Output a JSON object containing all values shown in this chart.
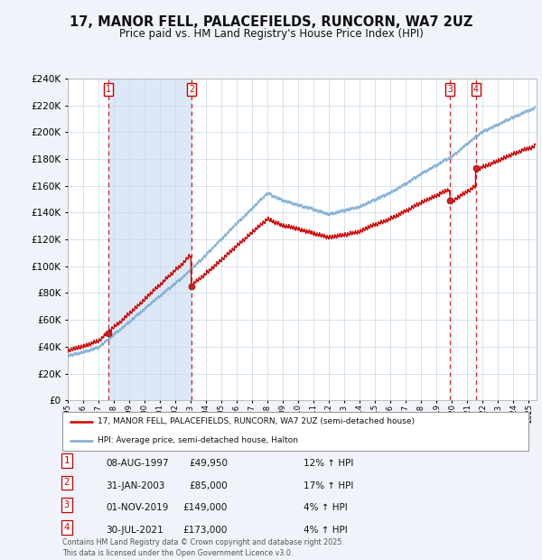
{
  "title": "17, MANOR FELL, PALACEFIELDS, RUNCORN, WA7 2UZ",
  "subtitle": "Price paid vs. HM Land Registry's House Price Index (HPI)",
  "background_color": "#f0f4fa",
  "plot_bg_color": "#ffffff",
  "shaded_bg_color": "#dce8f5",
  "ylim": [
    0,
    240000
  ],
  "yticks": [
    0,
    20000,
    40000,
    60000,
    80000,
    100000,
    120000,
    140000,
    160000,
    180000,
    200000,
    220000,
    240000
  ],
  "sale_prices": [
    49950,
    85000,
    149000,
    173000
  ],
  "sale_labels": [
    "1",
    "2",
    "3",
    "4"
  ],
  "legend_red": "17, MANOR FELL, PALACEFIELDS, RUNCORN, WA7 2UZ (semi-detached house)",
  "legend_blue": "HPI: Average price, semi-detached house, Halton",
  "footer": "Contains HM Land Registry data © Crown copyright and database right 2025.\nThis data is licensed under the Open Government Licence v3.0.",
  "red_color": "#cc0000",
  "blue_color": "#7aabd4",
  "table_rows": [
    {
      "label": "1",
      "date": "08-AUG-1997",
      "price": "£49,950",
      "hpi": "12% ↑ HPI"
    },
    {
      "label": "2",
      "date": "31-JAN-2003",
      "price": "£85,000",
      "hpi": "17% ↑ HPI"
    },
    {
      "label": "3",
      "date": "01-NOV-2019",
      "price": "£149,000",
      "hpi": "4% ↑ HPI"
    },
    {
      "label": "4",
      "date": "30-JUL-2021",
      "price": "£173,000",
      "hpi": "4% ↑ HPI"
    }
  ]
}
